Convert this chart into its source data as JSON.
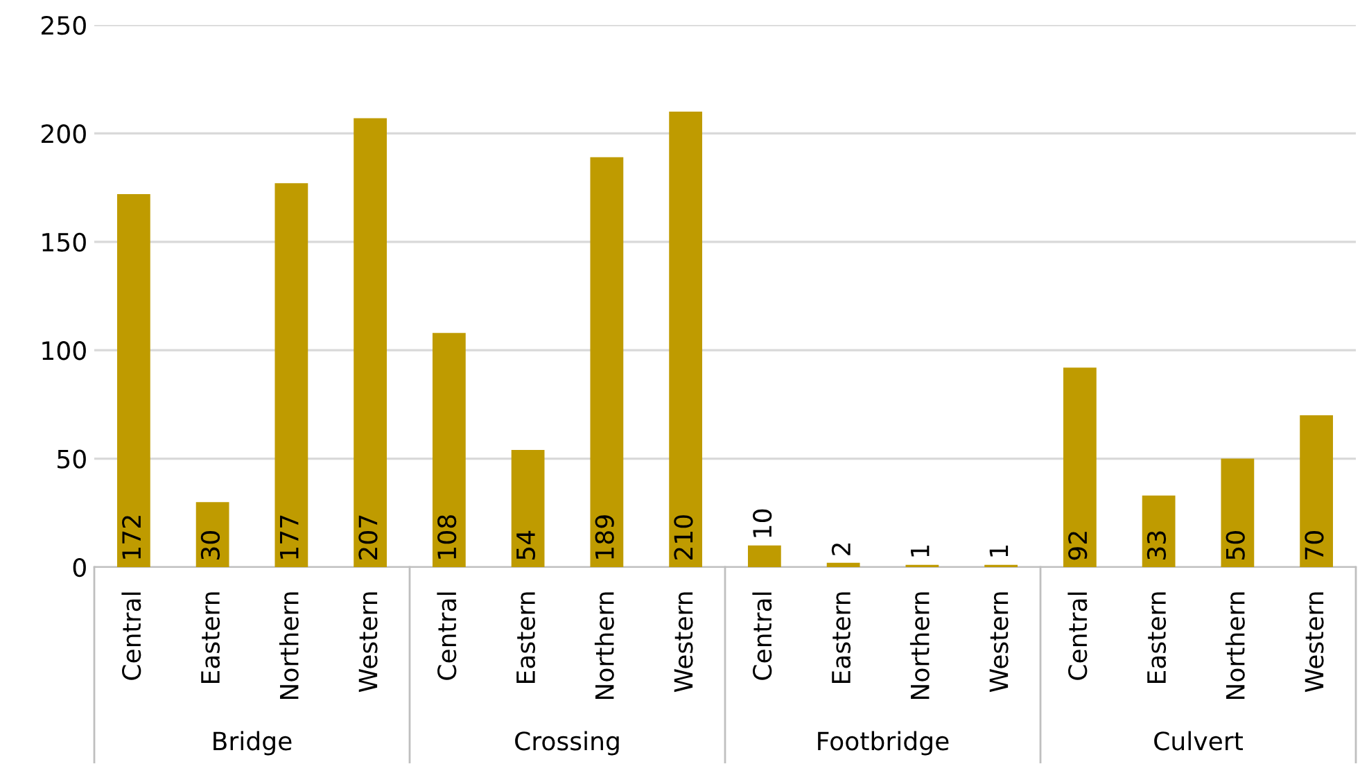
{
  "chart_data": {
    "type": "bar",
    "categories": [
      "Central",
      "Eastern",
      "Northern",
      "Western",
      "Central",
      "Eastern",
      "Northern",
      "Western",
      "Central",
      "Eastern",
      "Northern",
      "Western",
      "Central",
      "Eastern",
      "Northern",
      "Western"
    ],
    "values": [
      172,
      30,
      177,
      207,
      108,
      54,
      189,
      210,
      10,
      2,
      1,
      1,
      92,
      33,
      50,
      70
    ],
    "color": "#bf9b00",
    "ylim": [
      0,
      250
    ],
    "yticks": [
      0,
      50,
      100,
      150,
      200,
      250
    ],
    "grid": "y",
    "data_labels": true,
    "annotations": [
      "Bridge",
      "Crossing",
      "Footbridge",
      "Culvert"
    ]
  }
}
